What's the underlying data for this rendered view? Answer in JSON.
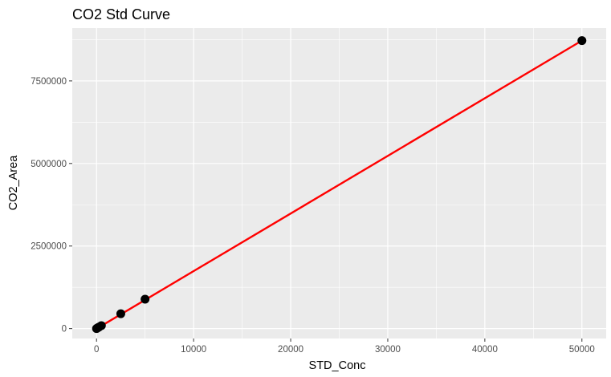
{
  "chart_data": {
    "type": "scatter",
    "title": "CO2 Std Curve",
    "xlabel": "STD_Conc",
    "ylabel": "CO2_Area",
    "xlim": [
      -2500,
      52500
    ],
    "ylim": [
      -300000,
      9100000
    ],
    "x_ticks": [
      0,
      10000,
      20000,
      30000,
      40000,
      50000
    ],
    "x_tick_labels": [
      "0",
      "10000",
      "20000",
      "30000",
      "40000",
      "50000"
    ],
    "y_ticks": [
      0,
      2500000,
      5000000,
      7500000
    ],
    "y_tick_labels": [
      "0",
      "2500000",
      "5000000",
      "7500000"
    ],
    "grid": true,
    "legend": "none",
    "series": [
      {
        "points": [
          {
            "x": 0,
            "y": 0
          },
          {
            "x": 100,
            "y": 20000
          },
          {
            "x": 250,
            "y": 45000
          },
          {
            "x": 500,
            "y": 90000
          },
          {
            "x": 2500,
            "y": 450000
          },
          {
            "x": 5000,
            "y": 890000
          },
          {
            "x": 50000,
            "y": 8720000
          }
        ],
        "point_color": "#000000"
      }
    ],
    "fit_line": {
      "x": [
        0,
        50000
      ],
      "y": [
        -5000,
        8720000
      ],
      "color": "#ff0000"
    },
    "panel_background": "#ebebeb",
    "grid_color": "#ffffff"
  }
}
